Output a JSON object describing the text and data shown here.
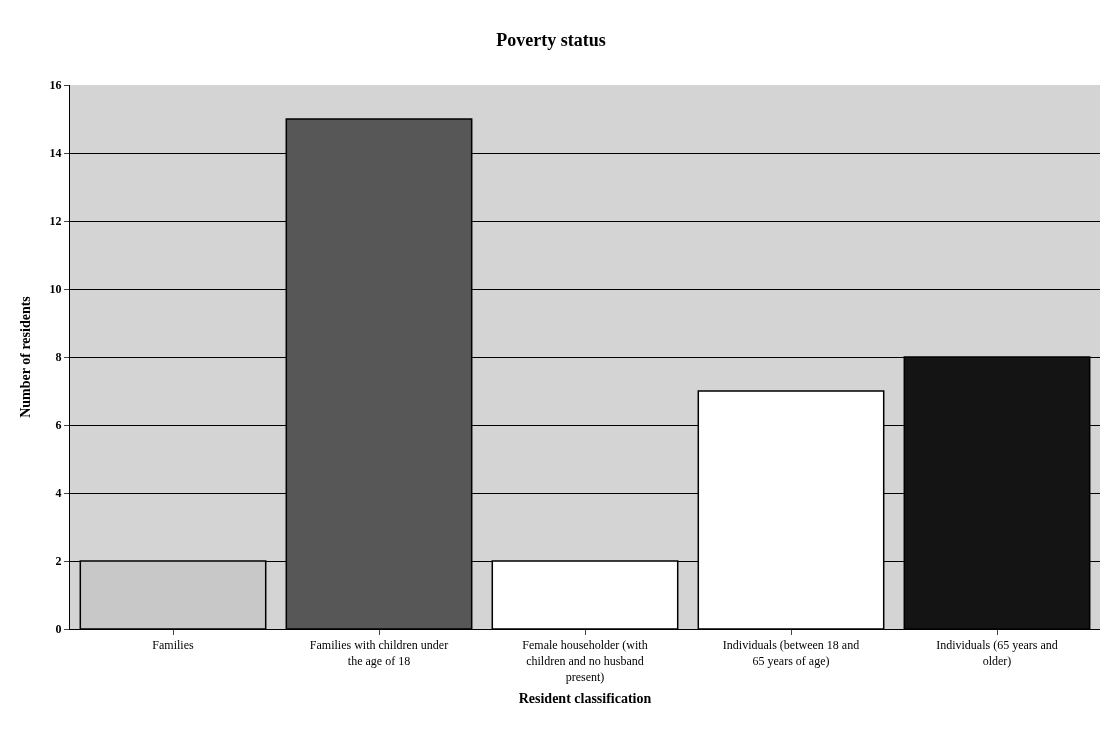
{
  "chart_data": {
    "type": "bar",
    "title": "Poverty status",
    "xlabel": "Resident classification",
    "ylabel": "Number of residents",
    "categories": [
      "Families",
      "Families with children under the age of 18",
      "Female householder (with children and no husband present)",
      "Individuals (between 18 and 65 years of age)",
      "Individuals (65 years and older)"
    ],
    "values": [
      2,
      15,
      2,
      7,
      8
    ],
    "colors": [
      "#c8c8c8",
      "#575757",
      "#ffffff",
      "#ffffff",
      "#141414"
    ],
    "ylim": [
      0,
      16
    ],
    "yticks": [
      0,
      2,
      4,
      6,
      8,
      10,
      12,
      14,
      16
    ],
    "grid": "y",
    "legend": false
  }
}
